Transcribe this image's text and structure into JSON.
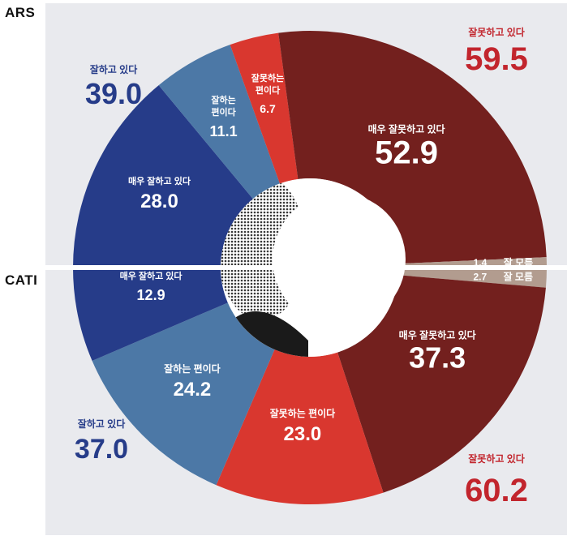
{
  "labels": {
    "ars": "ARS",
    "cati": "CATI"
  },
  "colors": {
    "very_bad": "#73201e",
    "bad": "#d9372f",
    "good": "#4c78a6",
    "very_good": "#263c89",
    "dont_know": "#b29c8f",
    "accent_red": "#c2252d",
    "accent_blue": "#263c89"
  },
  "chart_data": [
    {
      "name": "ARS",
      "type": "pie",
      "half": "top",
      "slices": [
        {
          "label": "매우 잘못하고 있다",
          "value": 52.9,
          "color": "very_bad"
        },
        {
          "label": "잘 모름",
          "value": 1.4,
          "color": "dont_know"
        },
        {
          "label": "매우 잘하고 있다",
          "value": 28.0,
          "color": "very_good"
        },
        {
          "label": "잘하는 편이다",
          "value": 11.1,
          "color": "good"
        },
        {
          "label": "잘못하는 편이다",
          "value": 6.7,
          "color": "bad"
        }
      ],
      "totals": [
        {
          "label": "잘못하고 있다",
          "value": "59.5"
        },
        {
          "label": "잘하고 있다",
          "value": "39.0"
        }
      ]
    },
    {
      "name": "CATI",
      "type": "pie",
      "half": "bottom",
      "slices": [
        {
          "label": "잘 모름",
          "value": 2.7,
          "color": "dont_know"
        },
        {
          "label": "매우 잘못하고 있다",
          "value": 37.3,
          "color": "very_bad"
        },
        {
          "label": "잘못하는 편이다",
          "value": 23.0,
          "color": "bad"
        },
        {
          "label": "잘하는 편이다",
          "value": 24.2,
          "color": "good"
        },
        {
          "label": "매우 잘하고 있다",
          "value": 12.9,
          "color": "very_good"
        }
      ],
      "totals": [
        {
          "label": "잘못하고 있다",
          "value": "60.2"
        },
        {
          "label": "잘하고 있다",
          "value": "37.0"
        }
      ]
    }
  ]
}
